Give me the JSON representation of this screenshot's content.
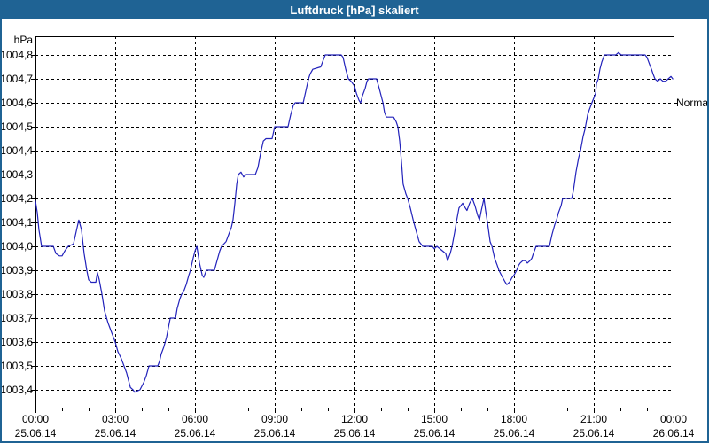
{
  "window": {
    "title": "Luftdruck [hPa] skaliert"
  },
  "colors": {
    "titlebar_bg": "#1f6394",
    "titlebar_text": "#ffffff",
    "window_border": "#1f6394",
    "plot_border": "#000000",
    "gridline": "#000000",
    "line": "#2222bb",
    "text": "#000000",
    "background": "#ffffff"
  },
  "chart_data": {
    "type": "line",
    "title": "Luftdruck [hPa] skaliert",
    "xlabel": "",
    "ylabel": "hPa",
    "grid": "dashed",
    "legend_position": "none",
    "y_axis": {
      "unit_label": "hPa",
      "tick_values": [
        1004.8,
        1004.7,
        1004.6,
        1004.5,
        1004.4,
        1004.3,
        1004.2,
        1004.1,
        1004.0,
        1003.9,
        1003.8,
        1003.7,
        1003.6,
        1003.5,
        1003.4
      ],
      "tick_labels": [
        "1004,8",
        "1004,7",
        "1004,6",
        "1004,5",
        "1004,4",
        "1004,3",
        "1004,2",
        "1004,1",
        "1004,0",
        "1003,9",
        "1003,8",
        "1003,7",
        "1003,6",
        "1003,5",
        "1003,4"
      ],
      "ylim": [
        1003.33,
        1004.88
      ]
    },
    "x_axis": {
      "range_hours": [
        0,
        24
      ],
      "major_tick_hours": [
        0,
        3,
        6,
        9,
        12,
        15,
        18,
        21,
        24
      ],
      "minor_tick_every_hours": 1,
      "tick_times": [
        "00:00",
        "03:00",
        "06:00",
        "09:00",
        "12:00",
        "15:00",
        "18:00",
        "21:00",
        "00:00"
      ],
      "tick_dates": [
        "25.06.14",
        "25.06.14",
        "25.06.14",
        "25.06.14",
        "25.06.14",
        "25.06.14",
        "25.06.14",
        "25.06.14",
        "26.06.14"
      ]
    },
    "annotations": [
      {
        "label": "Normal",
        "value": 1004.6,
        "side": "right"
      }
    ],
    "series": [
      {
        "name": "Luftdruck [hPa] skaliert",
        "color": "#2222bb",
        "points": [
          [
            0,
            1004.19
          ],
          [
            0.07,
            1004.14
          ],
          [
            0.13,
            1004.07
          ],
          [
            0.23,
            1004.0
          ],
          [
            0.67,
            1004.0
          ],
          [
            0.77,
            1003.97
          ],
          [
            0.9,
            1003.96
          ],
          [
            1.0,
            1003.96
          ],
          [
            1.1,
            1003.98
          ],
          [
            1.23,
            1004.0
          ],
          [
            1.43,
            1004.01
          ],
          [
            1.53,
            1004.06
          ],
          [
            1.63,
            1004.11
          ],
          [
            1.73,
            1004.07
          ],
          [
            1.83,
            1003.97
          ],
          [
            1.93,
            1003.9
          ],
          [
            2.0,
            1003.86
          ],
          [
            2.1,
            1003.85
          ],
          [
            2.27,
            1003.85
          ],
          [
            2.33,
            1003.89
          ],
          [
            2.4,
            1003.86
          ],
          [
            2.5,
            1003.8
          ],
          [
            2.6,
            1003.73
          ],
          [
            2.73,
            1003.68
          ],
          [
            2.83,
            1003.65
          ],
          [
            3.0,
            1003.6
          ],
          [
            3.1,
            1003.56
          ],
          [
            3.23,
            1003.53
          ],
          [
            3.33,
            1003.5
          ],
          [
            3.43,
            1003.47
          ],
          [
            3.57,
            1003.41
          ],
          [
            3.67,
            1003.4
          ],
          [
            3.73,
            1003.39
          ],
          [
            3.93,
            1003.4
          ],
          [
            4.07,
            1003.43
          ],
          [
            4.17,
            1003.46
          ],
          [
            4.27,
            1003.5
          ],
          [
            4.6,
            1003.5
          ],
          [
            4.67,
            1003.52
          ],
          [
            4.73,
            1003.55
          ],
          [
            4.83,
            1003.58
          ],
          [
            4.93,
            1003.62
          ],
          [
            5.0,
            1003.66
          ],
          [
            5.07,
            1003.7
          ],
          [
            5.27,
            1003.7
          ],
          [
            5.33,
            1003.74
          ],
          [
            5.43,
            1003.78
          ],
          [
            5.5,
            1003.8
          ],
          [
            5.57,
            1003.81
          ],
          [
            5.67,
            1003.84
          ],
          [
            5.77,
            1003.88
          ],
          [
            5.83,
            1003.9
          ],
          [
            5.93,
            1003.95
          ],
          [
            6.0,
            1003.98
          ],
          [
            6.07,
            1004.0
          ],
          [
            6.17,
            1003.93
          ],
          [
            6.27,
            1003.88
          ],
          [
            6.33,
            1003.87
          ],
          [
            6.43,
            1003.9
          ],
          [
            6.73,
            1003.9
          ],
          [
            6.83,
            1003.94
          ],
          [
            6.93,
            1003.98
          ],
          [
            7.0,
            1004.0
          ],
          [
            7.17,
            1004.02
          ],
          [
            7.27,
            1004.05
          ],
          [
            7.37,
            1004.08
          ],
          [
            7.43,
            1004.11
          ],
          [
            7.5,
            1004.18
          ],
          [
            7.57,
            1004.26
          ],
          [
            7.63,
            1004.3
          ],
          [
            7.73,
            1004.31
          ],
          [
            7.83,
            1004.29
          ],
          [
            7.93,
            1004.3
          ],
          [
            8.27,
            1004.3
          ],
          [
            8.37,
            1004.33
          ],
          [
            8.47,
            1004.39
          ],
          [
            8.57,
            1004.44
          ],
          [
            8.67,
            1004.45
          ],
          [
            8.9,
            1004.45
          ],
          [
            9.0,
            1004.5
          ],
          [
            9.5,
            1004.5
          ],
          [
            9.6,
            1004.55
          ],
          [
            9.7,
            1004.59
          ],
          [
            9.77,
            1004.6
          ],
          [
            10.07,
            1004.6
          ],
          [
            10.17,
            1004.65
          ],
          [
            10.27,
            1004.7
          ],
          [
            10.33,
            1004.72
          ],
          [
            10.43,
            1004.74
          ],
          [
            10.73,
            1004.75
          ],
          [
            10.83,
            1004.78
          ],
          [
            10.9,
            1004.8
          ],
          [
            11.5,
            1004.8
          ],
          [
            11.57,
            1004.79
          ],
          [
            11.67,
            1004.74
          ],
          [
            11.77,
            1004.7
          ],
          [
            11.87,
            1004.69
          ],
          [
            12.0,
            1004.67
          ],
          [
            12.07,
            1004.64
          ],
          [
            12.17,
            1004.61
          ],
          [
            12.23,
            1004.6
          ],
          [
            12.3,
            1004.63
          ],
          [
            12.4,
            1004.66
          ],
          [
            12.47,
            1004.69
          ],
          [
            12.53,
            1004.7
          ],
          [
            12.83,
            1004.7
          ],
          [
            12.93,
            1004.66
          ],
          [
            13.0,
            1004.63
          ],
          [
            13.07,
            1004.6
          ],
          [
            13.13,
            1004.56
          ],
          [
            13.2,
            1004.54
          ],
          [
            13.47,
            1004.54
          ],
          [
            13.57,
            1004.52
          ],
          [
            13.63,
            1004.5
          ],
          [
            13.7,
            1004.44
          ],
          [
            13.77,
            1004.35
          ],
          [
            13.83,
            1004.26
          ],
          [
            13.93,
            1004.22
          ],
          [
            14.0,
            1004.2
          ],
          [
            14.1,
            1004.16
          ],
          [
            14.23,
            1004.1
          ],
          [
            14.33,
            1004.06
          ],
          [
            14.43,
            1004.02
          ],
          [
            14.57,
            1004.0
          ],
          [
            14.93,
            1004.0
          ],
          [
            15.0,
            1003.99
          ],
          [
            15.1,
            1004.0
          ],
          [
            15.43,
            1003.97
          ],
          [
            15.5,
            1003.94
          ],
          [
            15.6,
            1003.97
          ],
          [
            15.67,
            1004.0
          ],
          [
            15.77,
            1004.06
          ],
          [
            15.83,
            1004.1
          ],
          [
            15.93,
            1004.16
          ],
          [
            16.07,
            1004.18
          ],
          [
            16.17,
            1004.16
          ],
          [
            16.23,
            1004.15
          ],
          [
            16.33,
            1004.18
          ],
          [
            16.43,
            1004.2
          ],
          [
            16.53,
            1004.17
          ],
          [
            16.63,
            1004.13
          ],
          [
            16.7,
            1004.11
          ],
          [
            16.77,
            1004.15
          ],
          [
            16.87,
            1004.2
          ],
          [
            16.93,
            1004.15
          ],
          [
            17.0,
            1004.1
          ],
          [
            17.1,
            1004.02
          ],
          [
            17.17,
            1004.0
          ],
          [
            17.27,
            1003.95
          ],
          [
            17.37,
            1003.92
          ],
          [
            17.43,
            1003.9
          ],
          [
            17.57,
            1003.87
          ],
          [
            17.67,
            1003.85
          ],
          [
            17.73,
            1003.84
          ],
          [
            17.83,
            1003.85
          ],
          [
            17.93,
            1003.87
          ],
          [
            18.0,
            1003.88
          ],
          [
            18.1,
            1003.9
          ],
          [
            18.17,
            1003.92
          ],
          [
            18.23,
            1003.93
          ],
          [
            18.33,
            1003.94
          ],
          [
            18.43,
            1003.94
          ],
          [
            18.5,
            1003.93
          ],
          [
            18.6,
            1003.94
          ],
          [
            18.67,
            1003.95
          ],
          [
            18.73,
            1003.97
          ],
          [
            18.83,
            1004.0
          ],
          [
            19.33,
            1004.0
          ],
          [
            19.43,
            1004.05
          ],
          [
            19.53,
            1004.09
          ],
          [
            19.6,
            1004.11
          ],
          [
            19.67,
            1004.14
          ],
          [
            19.77,
            1004.17
          ],
          [
            19.83,
            1004.2
          ],
          [
            20.17,
            1004.2
          ],
          [
            20.23,
            1004.23
          ],
          [
            20.33,
            1004.31
          ],
          [
            20.43,
            1004.37
          ],
          [
            20.5,
            1004.4
          ],
          [
            20.6,
            1004.46
          ],
          [
            20.67,
            1004.49
          ],
          [
            20.77,
            1004.55
          ],
          [
            20.83,
            1004.57
          ],
          [
            20.93,
            1004.6
          ],
          [
            21.0,
            1004.62
          ],
          [
            21.07,
            1004.64
          ],
          [
            21.1,
            1004.68
          ],
          [
            21.17,
            1004.7
          ],
          [
            21.23,
            1004.74
          ],
          [
            21.3,
            1004.77
          ],
          [
            21.4,
            1004.8
          ],
          [
            21.83,
            1004.8
          ],
          [
            21.93,
            1004.81
          ],
          [
            22.03,
            1004.8
          ],
          [
            22.93,
            1004.8
          ],
          [
            23.0,
            1004.79
          ],
          [
            23.1,
            1004.76
          ],
          [
            23.17,
            1004.74
          ],
          [
            23.23,
            1004.72
          ],
          [
            23.3,
            1004.7
          ],
          [
            23.4,
            1004.69
          ],
          [
            23.5,
            1004.7
          ],
          [
            23.6,
            1004.69
          ],
          [
            23.7,
            1004.69
          ],
          [
            23.8,
            1004.7
          ],
          [
            23.9,
            1004.71
          ],
          [
            23.97,
            1004.7
          ]
        ]
      }
    ]
  }
}
